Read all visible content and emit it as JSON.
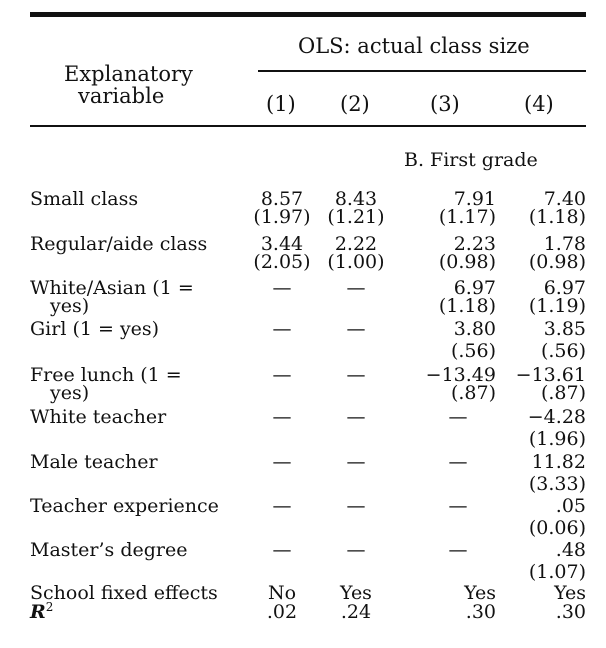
{
  "header": {
    "explanatory_line1": "Explanatory",
    "explanatory_line2": "variable",
    "group_title": "OLS: actual class size",
    "col1": "(1)",
    "col2": "(2)",
    "col3": "(3)",
    "col4": "(4)"
  },
  "section": "B. First grade",
  "rows": [
    {
      "label": "Small class",
      "v": [
        "8.57",
        "8.43",
        "7.91",
        "7.40"
      ],
      "se": [
        "(1.97)",
        "(1.21)",
        "(1.17)",
        "(1.18)"
      ]
    },
    {
      "label": "Regular/aide class",
      "v": [
        "3.44",
        "2.22",
        "2.23",
        "1.78"
      ],
      "se": [
        "(2.05)",
        "(1.00)",
        "(0.98)",
        "(0.98)"
      ]
    },
    {
      "label": "White/Asian (1 =",
      "label2": "yes)",
      "v": [
        "—",
        "—",
        "6.97",
        "6.97"
      ],
      "se": [
        "",
        "",
        "(1.18)",
        "(1.19)"
      ]
    },
    {
      "label": "Girl (1 = yes)",
      "v": [
        "—",
        "—",
        "3.80",
        "3.85"
      ],
      "se": [
        "",
        "",
        "(.56)",
        "(.56)"
      ]
    },
    {
      "label": "Free lunch (1 =",
      "label2": "yes)",
      "v": [
        "—",
        "—",
        "−13.49",
        "−13.61"
      ],
      "se": [
        "",
        "",
        "(.87)",
        "(.87)"
      ]
    },
    {
      "label": "White teacher",
      "v": [
        "—",
        "—",
        "—",
        "−4.28"
      ],
      "se": [
        "",
        "",
        "",
        "(1.96)"
      ]
    },
    {
      "label": "Male teacher",
      "v": [
        "—",
        "—",
        "—",
        "11.82"
      ],
      "se": [
        "",
        "",
        "",
        "(3.33)"
      ]
    },
    {
      "label": "Teacher experience",
      "v": [
        "—",
        "—",
        "—",
        ".05"
      ],
      "se": [
        "",
        "",
        "",
        "(0.06)"
      ]
    },
    {
      "label": "Master’s degree",
      "v": [
        "—",
        "—",
        "—",
        ".48"
      ],
      "se": [
        "",
        "",
        "",
        "(1.07)"
      ]
    },
    {
      "label": "School fixed effects",
      "v": [
        "No",
        "Yes",
        "Yes",
        "Yes"
      ]
    },
    {
      "label": "R",
      "sup": "2",
      "v": [
        ".02",
        ".24",
        ".30",
        ".30"
      ]
    }
  ]
}
